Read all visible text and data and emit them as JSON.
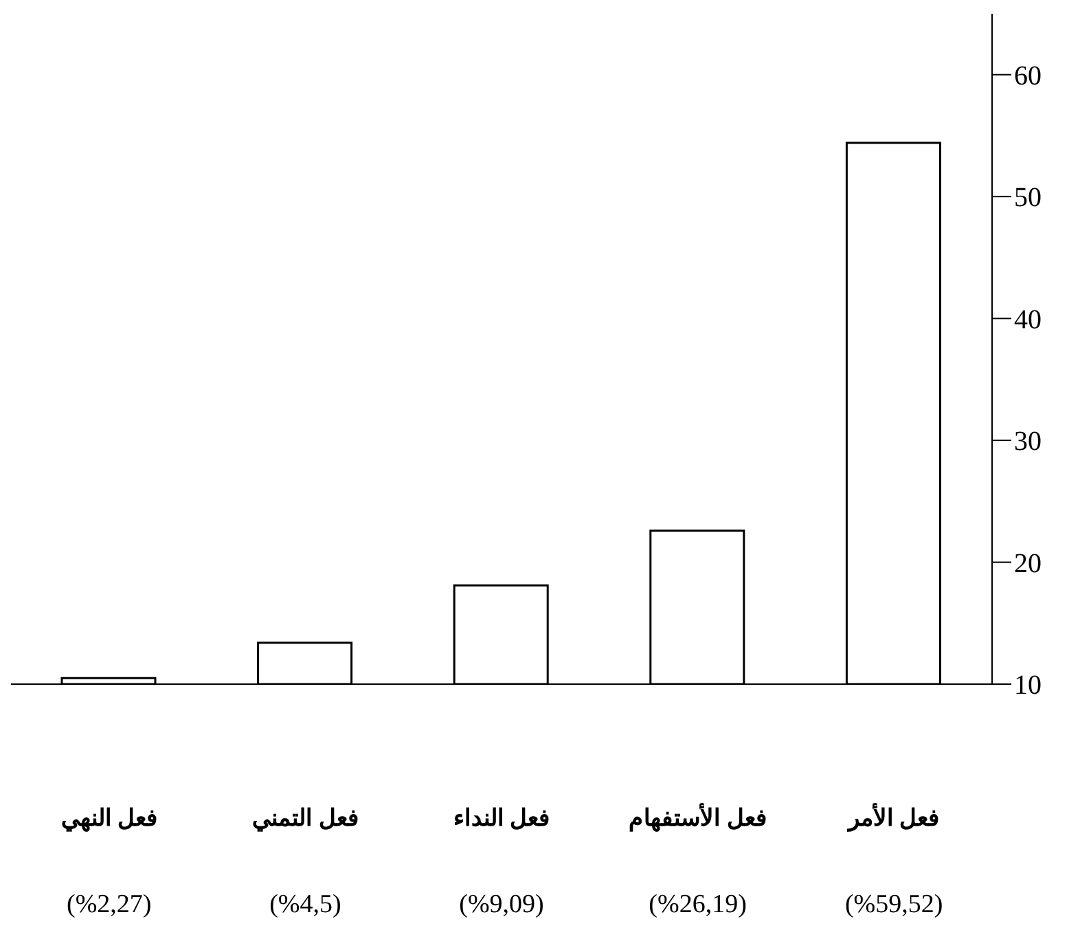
{
  "chart_data": {
    "type": "bar",
    "categories": [
      "فعل النهي",
      "فعل التمني",
      "فعل النداء",
      "فعل الأستفهام",
      "فعل الأمر"
    ],
    "values": [
      10.5,
      13.4,
      18.1,
      22.6,
      54.4
    ],
    "annotations": [
      "(%2,27)",
      "(%4,5)",
      "(%9,09)",
      "(%26,19)",
      "(%59,52)"
    ],
    "color": "#ffffff",
    "ylim": [
      10,
      65
    ],
    "yticks": [
      10,
      20,
      30,
      40,
      50,
      60
    ]
  }
}
